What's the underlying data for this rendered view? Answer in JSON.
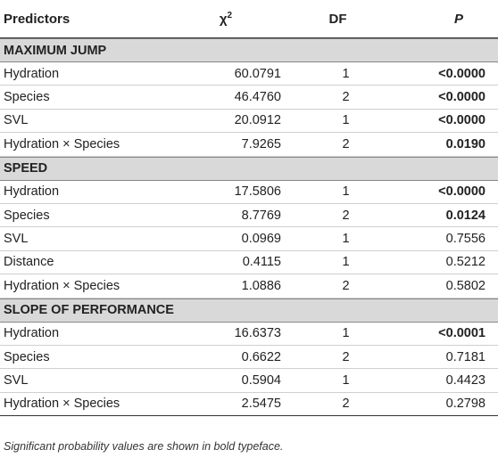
{
  "header": {
    "predictors": "Predictors",
    "chi": "χ",
    "chi_sup": "2",
    "df": "DF",
    "p": "P"
  },
  "sections": [
    {
      "title": "MAXIMUM JUMP",
      "rows": [
        {
          "predictor": "Hydration",
          "chi": "60.0791",
          "df": "1",
          "p": "<0.0000",
          "bold": true
        },
        {
          "predictor": "Species",
          "chi": "46.4760",
          "df": "2",
          "p": "<0.0000",
          "bold": true
        },
        {
          "predictor": "SVL",
          "chi": "20.0912",
          "df": "1",
          "p": "<0.0000",
          "bold": true
        },
        {
          "predictor": "Hydration × Species",
          "chi": "7.9265",
          "df": "2",
          "p": "0.0190",
          "bold": true
        }
      ]
    },
    {
      "title": "SPEED",
      "rows": [
        {
          "predictor": "Hydration",
          "chi": "17.5806",
          "df": "1",
          "p": "<0.0000",
          "bold": true
        },
        {
          "predictor": "Species",
          "chi": "8.7769",
          "df": "2",
          "p": "0.0124",
          "bold": true
        },
        {
          "predictor": "SVL",
          "chi": "0.0969",
          "df": "1",
          "p": "0.7556",
          "bold": false
        },
        {
          "predictor": "Distance",
          "chi": "0.4115",
          "df": "1",
          "p": "0.5212",
          "bold": false
        },
        {
          "predictor": "Hydration × Species",
          "chi": "1.0886",
          "df": "2",
          "p": "0.5802",
          "bold": false
        }
      ]
    },
    {
      "title": "SLOPE OF PERFORMANCE",
      "rows": [
        {
          "predictor": "Hydration",
          "chi": "16.6373",
          "df": "1",
          "p": "<0.0001",
          "bold": true
        },
        {
          "predictor": "Species",
          "chi": "0.6622",
          "df": "2",
          "p": "0.7181",
          "bold": false
        },
        {
          "predictor": "SVL",
          "chi": "0.5904",
          "df": "1",
          "p": "0.4423",
          "bold": false
        },
        {
          "predictor": "Hydration × Species",
          "chi": "2.5475",
          "df": "2",
          "p": "0.2798",
          "bold": false
        }
      ]
    }
  ],
  "footnote": "Significant probability values are shown in bold typeface."
}
